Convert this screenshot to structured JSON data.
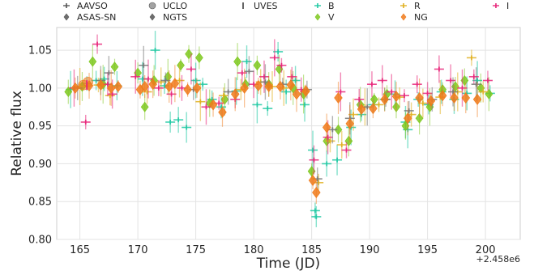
{
  "chart_data": {
    "type": "scatter",
    "title": "",
    "xlabel": "Time (JD)",
    "ylabel": "Relative flux",
    "x_offset_label": "+2.458e6",
    "xlim": [
      163,
      203
    ],
    "ylim": [
      0.8,
      1.08
    ],
    "xticks": [
      165,
      170,
      175,
      180,
      185,
      190,
      195,
      200
    ],
    "yticks": [
      0.8,
      0.85,
      0.9,
      0.95,
      1.0,
      1.05
    ],
    "grid": true,
    "legend_position": "top",
    "legend": [
      {
        "name": "AAVSO",
        "marker": "plus",
        "color": "#555555"
      },
      {
        "name": "ASAS-SN",
        "marker": "diamond",
        "color": "#555555"
      },
      {
        "name": "UCLO",
        "marker": "circle",
        "color": "#555555"
      },
      {
        "name": "NGTS",
        "marker": "diamond",
        "color": "#555555"
      },
      {
        "name": "UVES",
        "marker": "bar",
        "color": "#555555"
      },
      {
        "name": "B",
        "marker": "plus",
        "color": "#1fc9a3"
      },
      {
        "name": "V",
        "marker": "diamond",
        "color": "#7ec81e"
      },
      {
        "name": "R",
        "marker": "plus",
        "color": "#e0b020"
      },
      {
        "name": "NG",
        "marker": "diamond",
        "color": "#f07a1a"
      },
      {
        "name": "I",
        "marker": "plus",
        "color": "#e8267a"
      }
    ],
    "series": [
      {
        "name": "B",
        "color": "#1fc9a3",
        "marker": "plus",
        "points": [
          [
            164.2,
            0.998
          ],
          [
            165.6,
            1.006
          ],
          [
            166.4,
            1.01
          ],
          [
            167.1,
            1.012
          ],
          [
            168.2,
            1.003
          ],
          [
            170.4,
            1.012
          ],
          [
            171.5,
            1.05
          ],
          [
            172.3,
            1.003
          ],
          [
            172.8,
            0.955
          ],
          [
            173.5,
            0.958
          ],
          [
            174.2,
            0.948
          ],
          [
            175.0,
            1.01
          ],
          [
            175.6,
            1.005
          ],
          [
            176.4,
            0.985
          ],
          [
            177.2,
            0.975
          ],
          [
            178.5,
            0.996
          ],
          [
            179.4,
            1.035
          ],
          [
            180.3,
            0.978
          ],
          [
            181.2,
            0.973
          ],
          [
            182.1,
            1.048
          ],
          [
            182.8,
            0.995
          ],
          [
            183.6,
            1.01
          ],
          [
            184.4,
            0.978
          ],
          [
            185.1,
            0.918
          ],
          [
            185.3,
            0.838
          ],
          [
            185.4,
            0.83
          ],
          [
            186.3,
            0.9
          ],
          [
            187.2,
            0.905
          ],
          [
            188.4,
            0.948
          ],
          [
            189.3,
            0.965
          ],
          [
            190.3,
            0.978
          ],
          [
            191.3,
            0.985
          ],
          [
            192.2,
            0.992
          ],
          [
            193.1,
            0.955
          ],
          [
            193.3,
            0.945
          ],
          [
            194.2,
            0.985
          ],
          [
            195.1,
            0.978
          ],
          [
            196.2,
            0.995
          ],
          [
            197.3,
            0.985
          ],
          [
            198.4,
            0.993
          ],
          [
            199.3,
            1.01
          ],
          [
            200.4,
            0.993
          ]
        ]
      },
      {
        "name": "V",
        "color": "#7ec81e",
        "marker": "diamond",
        "points": [
          [
            164.0,
            0.995
          ],
          [
            165.2,
            1.002
          ],
          [
            166.1,
            1.035
          ],
          [
            167.0,
            1.005
          ],
          [
            168.0,
            1.028
          ],
          [
            170.0,
            1.02
          ],
          [
            170.6,
            0.975
          ],
          [
            171.4,
            1.01
          ],
          [
            172.6,
            1.015
          ],
          [
            173.7,
            1.03
          ],
          [
            174.4,
            1.045
          ],
          [
            175.3,
            1.04
          ],
          [
            176.2,
            0.98
          ],
          [
            177.5,
            0.985
          ],
          [
            178.6,
            1.035
          ],
          [
            179.3,
            1.005
          ],
          [
            180.3,
            1.03
          ],
          [
            181.3,
            1.005
          ],
          [
            182.2,
            1.025
          ],
          [
            183.4,
            1.0
          ],
          [
            184.3,
            0.992
          ],
          [
            185.0,
            0.89
          ],
          [
            186.3,
            0.93
          ],
          [
            187.3,
            0.945
          ],
          [
            188.2,
            0.93
          ],
          [
            189.2,
            0.978
          ],
          [
            190.4,
            0.985
          ],
          [
            191.5,
            0.992
          ],
          [
            192.3,
            0.975
          ],
          [
            193.1,
            0.95
          ],
          [
            194.3,
            0.96
          ],
          [
            195.2,
            0.975
          ],
          [
            196.3,
            0.998
          ],
          [
            197.4,
            1.002
          ],
          [
            198.2,
            1.01
          ],
          [
            199.6,
            1.0
          ],
          [
            200.3,
            0.992
          ]
        ]
      },
      {
        "name": "R",
        "color": "#e0b020",
        "marker": "plus",
        "points": [
          [
            165.0,
            1.002
          ],
          [
            166.6,
            1.004
          ],
          [
            167.6,
            0.99
          ],
          [
            170.8,
            0.995
          ],
          [
            172.0,
            1.008
          ],
          [
            173.6,
            1.01
          ],
          [
            175.4,
            0.982
          ],
          [
            177.4,
            0.99
          ],
          [
            178.9,
            0.998
          ],
          [
            180.6,
            1.008
          ],
          [
            181.6,
            1.002
          ],
          [
            182.6,
            1.0
          ],
          [
            184.4,
            0.995
          ],
          [
            185.6,
            0.875
          ],
          [
            186.6,
            0.93
          ],
          [
            187.6,
            0.925
          ],
          [
            188.6,
            0.965
          ],
          [
            189.6,
            0.975
          ],
          [
            190.8,
            0.978
          ],
          [
            192.6,
            0.988
          ],
          [
            193.6,
            0.965
          ],
          [
            194.6,
            0.98
          ],
          [
            196.1,
            0.988
          ],
          [
            197.6,
            0.995
          ],
          [
            198.8,
            1.04
          ],
          [
            199.8,
            0.995
          ]
        ]
      },
      {
        "name": "I",
        "color": "#e8267a",
        "marker": "plus",
        "points": [
          [
            164.5,
            1.0
          ],
          [
            165.5,
            0.955
          ],
          [
            166.5,
            1.058
          ],
          [
            167.4,
            1.005
          ],
          [
            167.8,
            0.992
          ],
          [
            169.8,
            1.015
          ],
          [
            170.9,
            1.012
          ],
          [
            171.8,
            1.0
          ],
          [
            172.9,
            0.992
          ],
          [
            173.8,
            1.0
          ],
          [
            174.6,
            1.025
          ],
          [
            175.9,
            0.975
          ],
          [
            177.0,
            0.98
          ],
          [
            178.4,
            0.985
          ],
          [
            179.0,
            1.02
          ],
          [
            180.0,
            1.005
          ],
          [
            180.9,
            1.015
          ],
          [
            181.8,
            1.04
          ],
          [
            182.4,
            1.03
          ],
          [
            183.3,
            1.015
          ],
          [
            184.1,
            0.998
          ],
          [
            185.2,
            0.905
          ],
          [
            186.4,
            0.935
          ],
          [
            187.5,
            0.995
          ],
          [
            188.0,
            0.918
          ],
          [
            189.1,
            0.985
          ],
          [
            190.2,
            1.005
          ],
          [
            191.1,
            1.01
          ],
          [
            191.9,
            0.995
          ],
          [
            193.0,
            0.99
          ],
          [
            194.1,
            1.005
          ],
          [
            195.0,
            0.993
          ],
          [
            196.0,
            1.025
          ],
          [
            197.0,
            1.01
          ],
          [
            198.0,
            1.0
          ],
          [
            199.0,
            1.015
          ],
          [
            200.2,
            1.01
          ]
        ]
      },
      {
        "name": "AAVSO",
        "color": "#777777",
        "marker": "plus",
        "points": [
          [
            164.8,
            1.0
          ],
          [
            166.8,
            1.01
          ],
          [
            167.5,
            1.02
          ],
          [
            170.5,
            1.03
          ],
          [
            172.4,
            1.01
          ],
          [
            174.8,
            0.998
          ],
          [
            177.8,
            0.995
          ],
          [
            179.6,
            1.022
          ],
          [
            181.0,
            1.008
          ],
          [
            182.5,
            1.005
          ],
          [
            184.6,
            0.998
          ],
          [
            185.5,
            0.88
          ],
          [
            186.8,
            0.945
          ],
          [
            188.3,
            0.96
          ],
          [
            189.8,
            0.975
          ],
          [
            191.4,
            0.985
          ],
          [
            193.4,
            0.97
          ],
          [
            195.4,
            0.985
          ],
          [
            197.2,
            0.995
          ],
          [
            199.2,
            1.005
          ]
        ]
      },
      {
        "name": "UCLO",
        "color": "#f07a1a",
        "marker": "circle",
        "points": [
          [
            165.3,
            1.004
          ],
          [
            165.7,
            1.008
          ]
        ]
      },
      {
        "name": "UVES",
        "color": "#e8267a",
        "marker": "bar",
        "points": [
          [
            165.6,
            1.004
          ]
        ]
      },
      {
        "name": "NG",
        "color": "#f07a1a",
        "marker": "diamond",
        "points": [
          [
            164.6,
            1.0
          ],
          [
            165.8,
            1.003
          ],
          [
            166.8,
            1.004
          ],
          [
            167.7,
            1.0
          ],
          [
            168.3,
            1.002
          ],
          [
            170.2,
            0.998
          ],
          [
            170.6,
            1.002
          ],
          [
            171.3,
            1.005
          ],
          [
            172.7,
            1.002
          ],
          [
            173.2,
            1.006
          ],
          [
            174.3,
            0.998
          ],
          [
            175.1,
            1.0
          ],
          [
            176.5,
            0.978
          ],
          [
            177.3,
            0.968
          ],
          [
            178.4,
            0.992
          ],
          [
            179.2,
            1.0
          ],
          [
            180.4,
            1.003
          ],
          [
            181.3,
            1.002
          ],
          [
            182.3,
            1.002
          ],
          [
            183.2,
            1.004
          ],
          [
            183.7,
            0.992
          ],
          [
            184.5,
            0.996
          ],
          [
            185.1,
            0.878
          ],
          [
            185.4,
            0.862
          ],
          [
            186.3,
            0.948
          ],
          [
            187.3,
            0.987
          ],
          [
            188.3,
            0.953
          ],
          [
            189.3,
            0.972
          ],
          [
            190.3,
            0.973
          ],
          [
            191.3,
            0.985
          ],
          [
            192.3,
            0.989
          ],
          [
            193.3,
            0.96
          ],
          [
            194.3,
            0.987
          ],
          [
            195.3,
            0.983
          ],
          [
            196.3,
            0.99
          ],
          [
            197.3,
            0.987
          ],
          [
            198.3,
            0.987
          ],
          [
            199.3,
            0.985
          ]
        ]
      }
    ]
  }
}
